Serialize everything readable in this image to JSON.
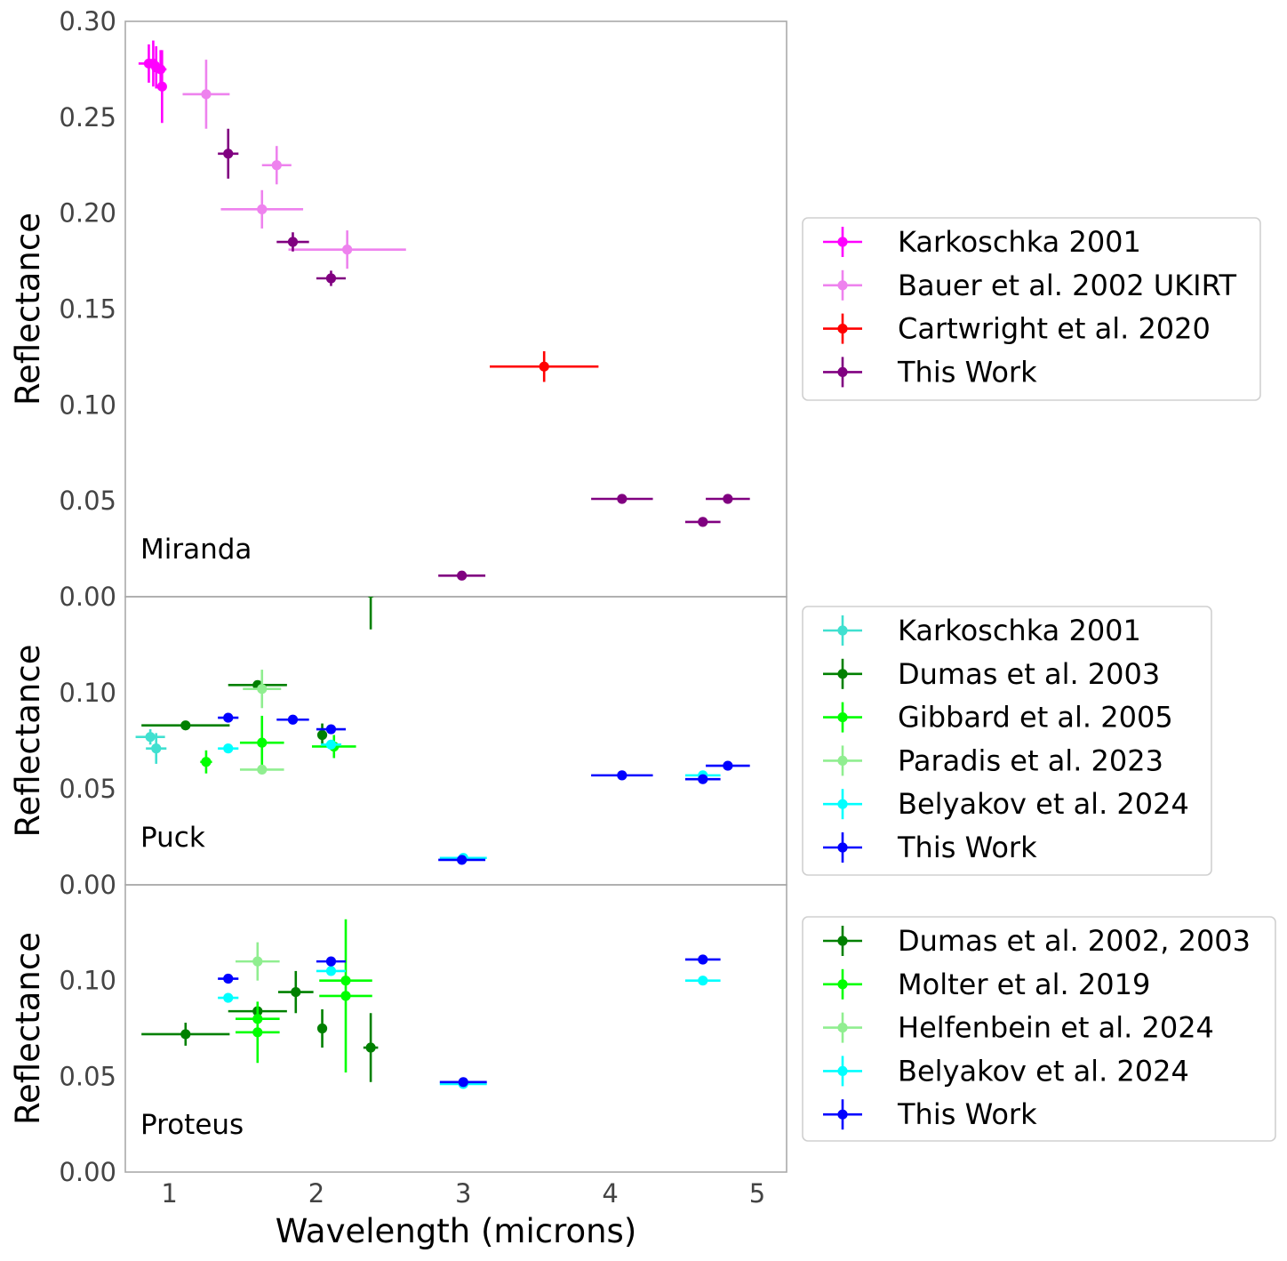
{
  "chart_data": [
    {
      "type": "scatter",
      "label": "Miranda",
      "ylabel": "Reflectance",
      "ylim": [
        0,
        0.3
      ],
      "yticks": [
        "0.00",
        "0.05",
        "0.10",
        "0.15",
        "0.20",
        "0.25",
        "0.30"
      ],
      "series": [
        {
          "name": "Karkoschka 2001",
          "color": "#ff00ff",
          "points": [
            {
              "x": 0.86,
              "y": 0.278,
              "xerr": 0.07,
              "yerr": 0.01
            },
            {
              "x": 0.89,
              "y": 0.278,
              "xerr": 0.03,
              "yerr": 0.012
            },
            {
              "x": 0.91,
              "y": 0.276,
              "xerr": 0.03,
              "yerr": 0.011
            },
            {
              "x": 0.94,
              "y": 0.275,
              "xerr": 0.04,
              "yerr": 0.01
            },
            {
              "x": 0.95,
              "y": 0.266,
              "xerr": 0.0,
              "yerr": 0.019
            }
          ]
        },
        {
          "name": "Bauer et al. 2002 UKIRT",
          "color": "#ee82ee",
          "points": [
            {
              "x": 1.25,
              "y": 0.262,
              "xerr": 0.16,
              "yerr": 0.018
            },
            {
              "x": 1.63,
              "y": 0.202,
              "xerr": 0.28,
              "yerr": 0.01
            },
            {
              "x": 1.73,
              "y": 0.225,
              "xerr": 0.1,
              "yerr": 0.01
            },
            {
              "x": 2.21,
              "y": 0.181,
              "xerr": 0.4,
              "yerr": 0.01
            }
          ]
        },
        {
          "name": "Cartwright et al. 2020",
          "color": "#ff0000",
          "points": [
            {
              "x": 3.55,
              "y": 0.12,
              "xerr": 0.37,
              "yerr": 0.008
            }
          ]
        },
        {
          "name": "This Work",
          "color": "#800080",
          "points": [
            {
              "x": 1.4,
              "y": 0.231,
              "xerr": 0.07,
              "yerr": 0.013
            },
            {
              "x": 1.84,
              "y": 0.185,
              "xerr": 0.11,
              "yerr": 0.005
            },
            {
              "x": 2.1,
              "y": 0.166,
              "xerr": 0.1,
              "yerr": 0.004
            },
            {
              "x": 2.99,
              "y": 0.011,
              "xerr": 0.16,
              "yerr": 0.0
            },
            {
              "x": 4.08,
              "y": 0.051,
              "xerr": 0.21,
              "yerr": 0.0
            },
            {
              "x": 4.63,
              "y": 0.039,
              "xerr": 0.12,
              "yerr": 0.0
            },
            {
              "x": 4.8,
              "y": 0.051,
              "xerr": 0.15,
              "yerr": 0.0
            }
          ]
        }
      ]
    },
    {
      "type": "scatter",
      "label": "Puck",
      "ylabel": "Reflectance",
      "ylim": [
        0,
        0.15
      ],
      "yticks": [
        "0.00",
        "0.05",
        "0.10"
      ],
      "series": [
        {
          "name": "Karkoschka 2001",
          "color": "#40e0d0",
          "points": [
            {
              "x": 0.87,
              "y": 0.077,
              "xerr": 0.1,
              "yerr": 0.004
            },
            {
              "x": 0.91,
              "y": 0.071,
              "xerr": 0.07,
              "yerr": 0.008
            }
          ]
        },
        {
          "name": "Dumas et al. 2003",
          "color": "#008000",
          "points": [
            {
              "x": 1.11,
              "y": 0.083,
              "xerr": 0.3,
              "yerr": 0.0
            },
            {
              "x": 1.6,
              "y": 0.104,
              "xerr": 0.2,
              "yerr": 0.0
            },
            {
              "x": 2.04,
              "y": 0.078,
              "xerr": 0.03,
              "yerr": 0.006
            },
            {
              "x": 2.37,
              "y": 0.152,
              "xerr": 0.0,
              "yerr": 0.019
            }
          ]
        },
        {
          "name": "Gibbard et al. 2005",
          "color": "#00ff00",
          "points": [
            {
              "x": 1.25,
              "y": 0.064,
              "xerr": 0.04,
              "yerr": 0.006
            },
            {
              "x": 1.63,
              "y": 0.074,
              "xerr": 0.15,
              "yerr": 0.014
            },
            {
              "x": 2.12,
              "y": 0.072,
              "xerr": 0.15,
              "yerr": 0.006
            }
          ]
        },
        {
          "name": "Paradis et al. 2023",
          "color": "#90ee90",
          "points": [
            {
              "x": 1.63,
              "y": 0.102,
              "xerr": 0.13,
              "yerr": 0.01
            },
            {
              "x": 1.63,
              "y": 0.06,
              "xerr": 0.15,
              "yerr": 0.0
            }
          ]
        },
        {
          "name": "Belyakov et al. 2024",
          "color": "#00ffff",
          "points": [
            {
              "x": 1.4,
              "y": 0.071,
              "xerr": 0.07,
              "yerr": 0.0
            },
            {
              "x": 2.1,
              "y": 0.073,
              "xerr": 0.07,
              "yerr": 0.0
            },
            {
              "x": 3.0,
              "y": 0.014,
              "xerr": 0.16,
              "yerr": 0.0
            },
            {
              "x": 4.63,
              "y": 0.057,
              "xerr": 0.12,
              "yerr": 0.0
            }
          ]
        },
        {
          "name": "This Work",
          "color": "#0000ff",
          "points": [
            {
              "x": 1.4,
              "y": 0.087,
              "xerr": 0.07,
              "yerr": 0.0
            },
            {
              "x": 1.84,
              "y": 0.086,
              "xerr": 0.11,
              "yerr": 0.0
            },
            {
              "x": 2.1,
              "y": 0.081,
              "xerr": 0.1,
              "yerr": 0.0
            },
            {
              "x": 2.99,
              "y": 0.013,
              "xerr": 0.16,
              "yerr": 0.0
            },
            {
              "x": 4.08,
              "y": 0.057,
              "xerr": 0.21,
              "yerr": 0.0
            },
            {
              "x": 4.63,
              "y": 0.055,
              "xerr": 0.12,
              "yerr": 0.0
            },
            {
              "x": 4.8,
              "y": 0.062,
              "xerr": 0.15,
              "yerr": 0.0
            }
          ]
        }
      ]
    },
    {
      "type": "scatter",
      "label": "Proteus",
      "ylabel": "Reflectance",
      "ylim": [
        0,
        0.15
      ],
      "yticks": [
        "0.00",
        "0.05",
        "0.10"
      ],
      "xlabel": "Wavelength (microns)",
      "xlim": [
        0.7,
        5.2
      ],
      "xticks": [
        "1",
        "2",
        "3",
        "4",
        "5"
      ],
      "series": [
        {
          "name": "Dumas et al. 2002, 2003",
          "color": "#008000",
          "points": [
            {
              "x": 1.11,
              "y": 0.072,
              "xerr": 0.3,
              "yerr": 0.006
            },
            {
              "x": 1.6,
              "y": 0.084,
              "xerr": 0.2,
              "yerr": 0.0
            },
            {
              "x": 1.86,
              "y": 0.094,
              "xerr": 0.12,
              "yerr": 0.011
            },
            {
              "x": 2.04,
              "y": 0.075,
              "xerr": 0.0,
              "yerr": 0.01
            },
            {
              "x": 2.37,
              "y": 0.065,
              "xerr": 0.05,
              "yerr": 0.018
            }
          ]
        },
        {
          "name": "Molter et al. 2019",
          "color": "#00ff00",
          "points": [
            {
              "x": 1.6,
              "y": 0.08,
              "xerr": 0.15,
              "yerr": 0.0
            },
            {
              "x": 1.6,
              "y": 0.073,
              "xerr": 0.15,
              "yerr": 0.016
            },
            {
              "x": 2.2,
              "y": 0.1,
              "xerr": 0.18,
              "yerr": 0.0
            },
            {
              "x": 2.2,
              "y": 0.092,
              "xerr": 0.18,
              "yerr": 0.04
            }
          ]
        },
        {
          "name": "Helfenbein et al. 2024",
          "color": "#90ee90",
          "points": [
            {
              "x": 1.6,
              "y": 0.11,
              "xerr": 0.15,
              "yerr": 0.01
            }
          ]
        },
        {
          "name": "Belyakov et al. 2024",
          "color": "#00ffff",
          "points": [
            {
              "x": 1.4,
              "y": 0.091,
              "xerr": 0.07,
              "yerr": 0.0
            },
            {
              "x": 2.1,
              "y": 0.105,
              "xerr": 0.1,
              "yerr": 0.0
            },
            {
              "x": 3.0,
              "y": 0.046,
              "xerr": 0.16,
              "yerr": 0.0
            },
            {
              "x": 4.63,
              "y": 0.1,
              "xerr": 0.12,
              "yerr": 0.0
            }
          ]
        },
        {
          "name": "This Work",
          "color": "#0000ff",
          "points": [
            {
              "x": 1.4,
              "y": 0.101,
              "xerr": 0.07,
              "yerr": 0.0
            },
            {
              "x": 2.1,
              "y": 0.11,
              "xerr": 0.1,
              "yerr": 0.0
            },
            {
              "x": 3.0,
              "y": 0.047,
              "xerr": 0.16,
              "yerr": 0.0
            },
            {
              "x": 4.63,
              "y": 0.111,
              "xerr": 0.12,
              "yerr": 0.0
            }
          ]
        }
      ]
    }
  ]
}
